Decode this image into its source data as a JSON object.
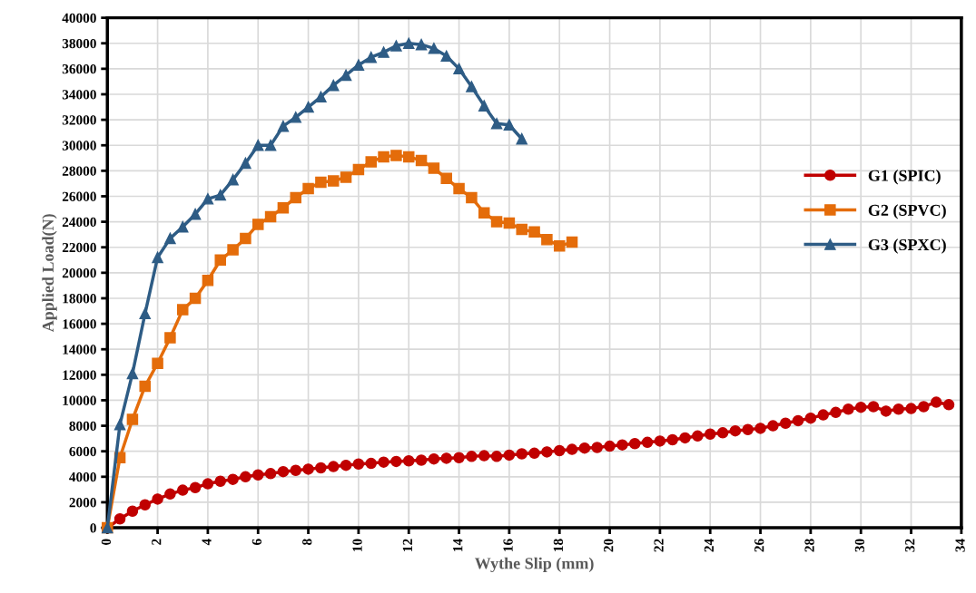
{
  "chart_data": {
    "type": "line",
    "xlabel": "Wythe Slip (mm)",
    "ylabel": "Applied Load(N)",
    "xlim": [
      0,
      34
    ],
    "xticks": [
      0,
      2,
      4,
      6,
      8,
      10,
      12,
      14,
      16,
      18,
      20,
      22,
      24,
      26,
      28,
      30,
      32,
      34
    ],
    "ylim": [
      0,
      40000
    ],
    "yticks": [
      0,
      2000,
      4000,
      6000,
      8000,
      10000,
      12000,
      14000,
      16000,
      18000,
      20000,
      22000,
      24000,
      26000,
      28000,
      30000,
      32000,
      34000,
      36000,
      38000,
      40000
    ],
    "grid": true,
    "legend": "right",
    "series": [
      {
        "name": "G1 (SPIC)",
        "color": "#c00000",
        "marker": "circle",
        "x": [
          0,
          0.5,
          1,
          1.5,
          2,
          2.5,
          3,
          3.5,
          4,
          4.5,
          5,
          5.5,
          6,
          6.5,
          7,
          7.5,
          8,
          8.5,
          9,
          9.5,
          10,
          10.5,
          11,
          11.5,
          12,
          12.5,
          13,
          13.5,
          14,
          14.5,
          15,
          15.5,
          16,
          16.5,
          17,
          17.5,
          18,
          18.5,
          19,
          19.5,
          20,
          20.5,
          21,
          21.5,
          22,
          22.5,
          23,
          23.5,
          24,
          24.5,
          25,
          25.5,
          26,
          26.5,
          27,
          27.5,
          28,
          28.5,
          29,
          29.5,
          30,
          30.5,
          31,
          31.5,
          32,
          32.5,
          33,
          33.5
        ],
        "values": [
          0,
          700,
          1300,
          1800,
          2250,
          2650,
          2950,
          3150,
          3450,
          3650,
          3800,
          4000,
          4150,
          4250,
          4400,
          4500,
          4600,
          4700,
          4800,
          4900,
          5000,
          5050,
          5150,
          5200,
          5250,
          5300,
          5400,
          5450,
          5500,
          5600,
          5650,
          5600,
          5700,
          5800,
          5850,
          5950,
          6050,
          6150,
          6250,
          6300,
          6400,
          6500,
          6600,
          6700,
          6800,
          6900,
          7050,
          7200,
          7350,
          7450,
          7600,
          7700,
          7800,
          8000,
          8200,
          8400,
          8600,
          8850,
          9050,
          9300,
          9450,
          9500,
          9150,
          9300,
          9350,
          9500,
          9850,
          9650
        ]
      },
      {
        "name": "G2 (SPVC)",
        "color": "#e46c0a",
        "marker": "square",
        "x": [
          0,
          0.5,
          1,
          1.5,
          2,
          2.5,
          3,
          3.5,
          4,
          4.5,
          5,
          5.5,
          6,
          6.5,
          7,
          7.5,
          8,
          8.5,
          9,
          9.5,
          10,
          10.5,
          11,
          11.5,
          12,
          12.5,
          13,
          13.5,
          14,
          14.5,
          15,
          15.5,
          16,
          16.5,
          17,
          17.5,
          18,
          18.5
        ],
        "values": [
          0,
          5500,
          8500,
          11100,
          12900,
          14900,
          17100,
          18000,
          19400,
          21000,
          21800,
          22700,
          23800,
          24400,
          25100,
          25900,
          26600,
          27100,
          27200,
          27500,
          28100,
          28700,
          29100,
          29200,
          29100,
          28800,
          28200,
          27400,
          26600,
          25900,
          24700,
          24000,
          23900,
          23400,
          23200,
          22600,
          22100,
          22400
        ]
      },
      {
        "name": "G3 (SPXC)",
        "color": "#2e5c85",
        "marker": "triangle",
        "x": [
          0,
          0.5,
          1,
          1.5,
          2,
          2.5,
          3,
          3.5,
          4,
          4.5,
          5,
          5.5,
          6,
          6.5,
          7,
          7.5,
          8,
          8.5,
          9,
          9.5,
          10,
          10.5,
          11,
          11.5,
          12,
          12.5,
          13,
          13.5,
          14,
          14.5,
          15,
          15.5,
          16,
          16.5
        ],
        "values": [
          0,
          8100,
          12100,
          16800,
          21200,
          22700,
          23600,
          24600,
          25800,
          26100,
          27300,
          28600,
          30000,
          30000,
          31500,
          32200,
          33000,
          33800,
          34700,
          35500,
          36300,
          36900,
          37300,
          37800,
          38000,
          37900,
          37600,
          37000,
          36000,
          34600,
          33100,
          31700,
          31600,
          30500
        ]
      }
    ]
  }
}
